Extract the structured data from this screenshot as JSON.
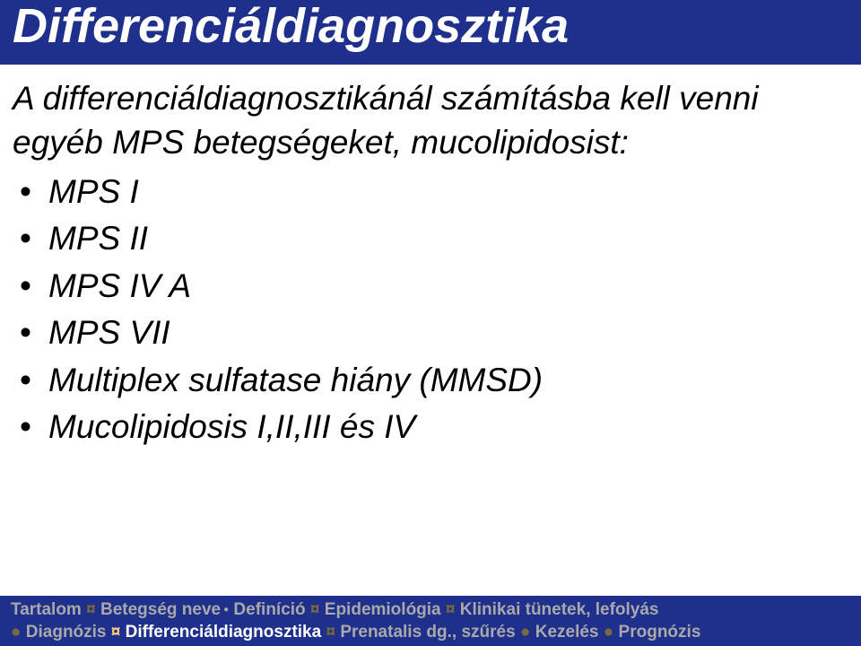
{
  "colors": {
    "header_bg": "#1e2f8c",
    "footer_bg": "#1e2f8c",
    "body_bg": "#ffffff",
    "title_text": "#ffffff",
    "body_text": "#000000",
    "sep_active": "#ffcc80",
    "sep_dim": "#7a6a40",
    "word_dim": "#a9a9a9",
    "word_active": "#ffffff"
  },
  "typography": {
    "title_fontsize": 54,
    "body_fontsize": 37,
    "footer_fontsize": 19,
    "title_family": "Comic Sans MS (italic bold)",
    "body_family": "Comic Sans MS (italic)",
    "footer_family": "Arial (bold)"
  },
  "header": {
    "title": "Differenciáldiagnosztika"
  },
  "body": {
    "intro": "A differenciáldiagnosztikánál számításba kell venni egyéb MPS betegségeket, mucolipidosist:",
    "bullets": [
      "MPS I",
      "MPS II",
      "MPS IV A",
      "MPS VII",
      "Multiplex sulfatase hiány (MMSD)",
      "Mucolipidosis I,II,III és IV"
    ]
  },
  "footer": {
    "line1": {
      "tokens": [
        {
          "text": "Tartalom",
          "role": "word-grey",
          "trailingDot": false
        },
        {
          "text": " ¤ ",
          "role": "sep-dim"
        },
        {
          "text": "Betegség neve",
          "role": "word-grey",
          "trailingDot": true
        },
        {
          "text": " ",
          "role": "sep-dim"
        },
        {
          "text": "Definíció",
          "role": "word-grey",
          "trailingDot": false
        },
        {
          "text": " ¤ ",
          "role": "sep-dim"
        },
        {
          "text": "Epidemiológia",
          "role": "word-grey",
          "trailingDot": false
        },
        {
          "text": " ¤ ",
          "role": "sep-dim"
        },
        {
          "text": "Klinikai tünetek, lefolyás",
          "role": "word-grey",
          "trailingDot": false
        }
      ]
    },
    "line2": {
      "tokens": [
        {
          "text": "●",
          "role": "sep-dim",
          "trailingDot": false
        },
        {
          "text": " ",
          "role": "sep-dim"
        },
        {
          "text": "Diagnózis",
          "role": "word-grey",
          "trailingDot": false
        },
        {
          "text": " ¤ ",
          "role": "sep-oct"
        },
        {
          "text": "Differenciáldiagnosztika",
          "role": "word-white",
          "trailingDot": false
        },
        {
          "text": " ¤ ",
          "role": "sep-dim"
        },
        {
          "text": "Prenatalis dg., szűrés",
          "role": "word-grey",
          "trailingDot": false
        },
        {
          "text": " ● ",
          "role": "sep-dim"
        },
        {
          "text": "Kezelés",
          "role": "word-grey",
          "trailingDot": false
        },
        {
          "text": " ● ",
          "role": "sep-dim"
        },
        {
          "text": "Prognózis",
          "role": "word-grey",
          "trailingDot": false
        }
      ]
    }
  }
}
